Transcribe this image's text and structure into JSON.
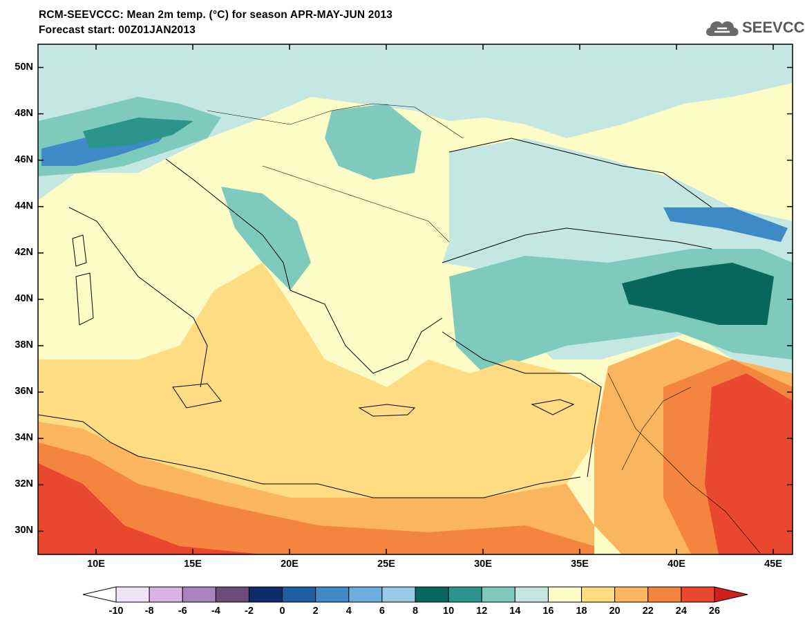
{
  "title_line1": "RCM-SEEVCCC: Mean 2m temp. (°C) for season APR-MAY-JUN 2013",
  "title_line2": "Forecast start: 00Z01JAN2013",
  "logo_text": "SEEVCCC",
  "lat_ticks": [
    "50N",
    "48N",
    "46N",
    "44N",
    "42N",
    "40N",
    "38N",
    "36N",
    "34N",
    "32N",
    "30N"
  ],
  "lon_ticks": [
    "10E",
    "15E",
    "20E",
    "25E",
    "30E",
    "35E",
    "40E",
    "45E"
  ],
  "colorbar": {
    "labels": [
      "-10",
      "-8",
      "-6",
      "-4",
      "-2",
      "0",
      "2",
      "4",
      "6",
      "8",
      "10",
      "12",
      "14",
      "16",
      "18",
      "20",
      "22",
      "24",
      "26"
    ],
    "colors": [
      "#ffffff",
      "#f0e2f7",
      "#d9b3e6",
      "#a985c0",
      "#6b4c78",
      "#0b2b6a",
      "#1c5fa0",
      "#3d8ac6",
      "#6aaedb",
      "#9bc8e6",
      "#08665c",
      "#2c958b",
      "#7ecbbd",
      "#c4e8e1",
      "#fdfbc6",
      "#fddc82",
      "#fbb55f",
      "#f3853f",
      "#e9472e",
      "#cf1f1f"
    ],
    "left_triangle_color": "#ffffff",
    "right_triangle_color": "#cf1f1f"
  },
  "map": {
    "lon_range": [
      7,
      46
    ],
    "lat_range": [
      29,
      51
    ],
    "sea_color": "#fddc82",
    "background_color": "#c4e8e1"
  }
}
